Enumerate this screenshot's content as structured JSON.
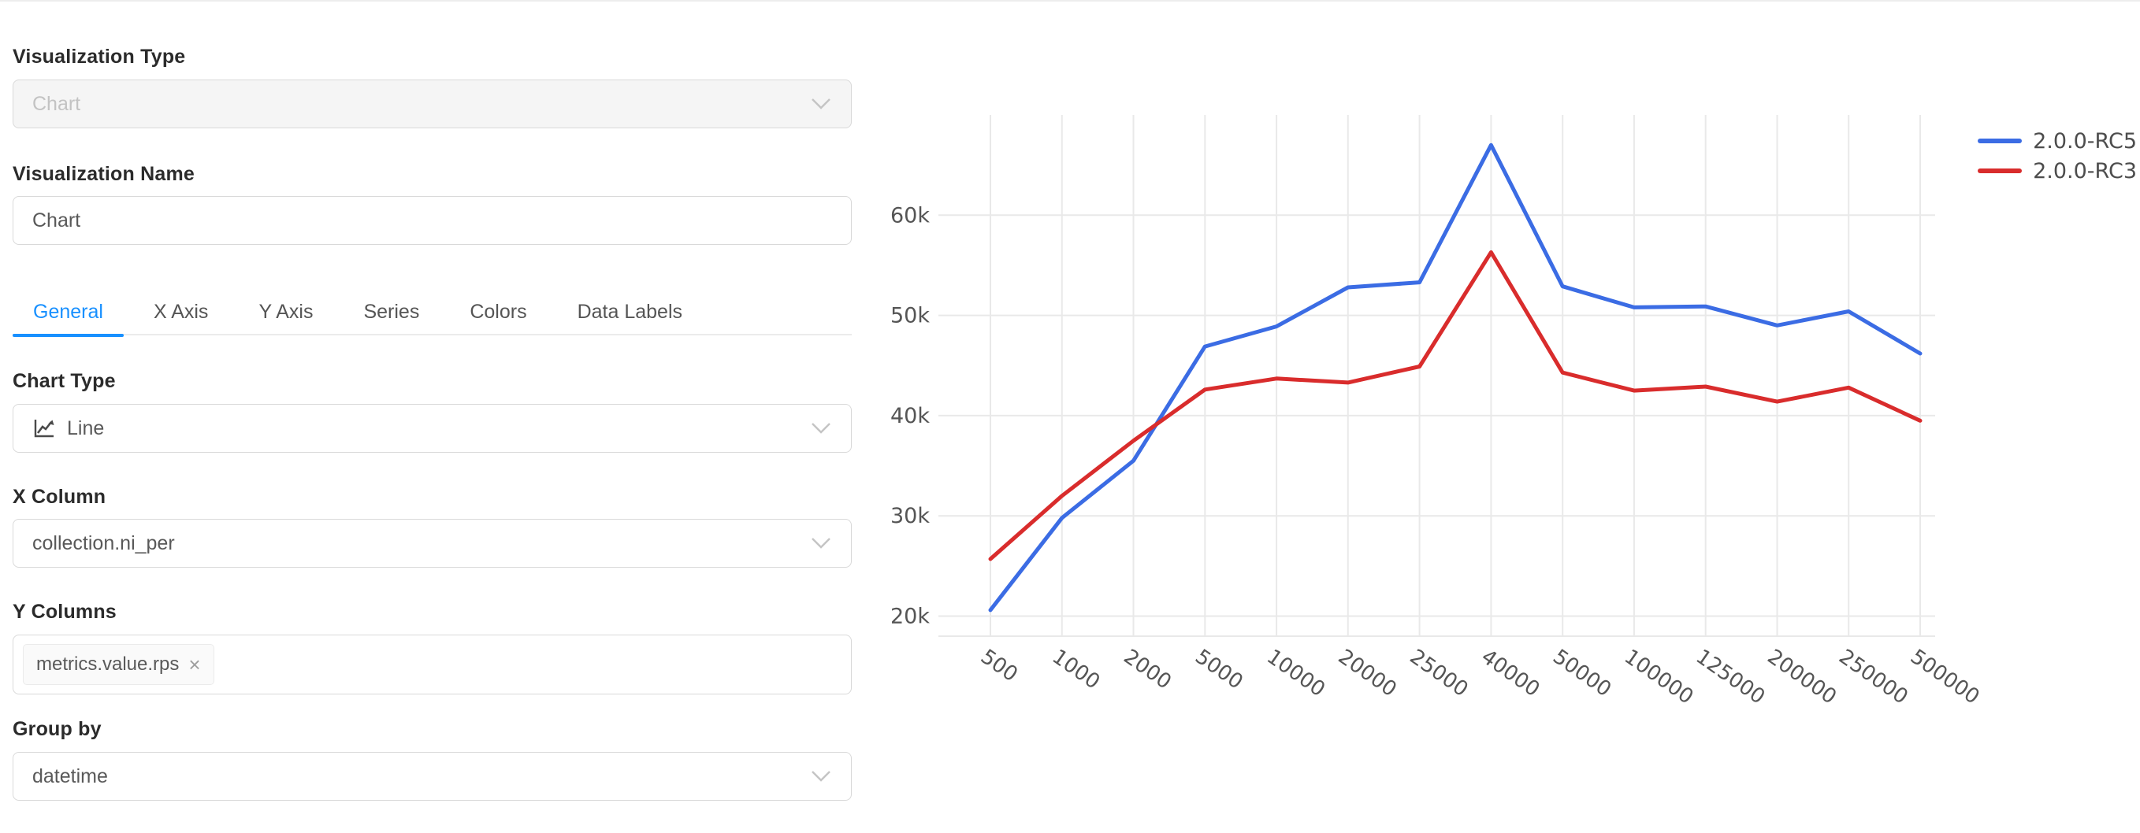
{
  "form": {
    "visualization_type": {
      "label": "Visualization Type",
      "value": "Chart"
    },
    "visualization_name": {
      "label": "Visualization Name",
      "value": "Chart"
    },
    "tabs": [
      {
        "label": "General",
        "active": true
      },
      {
        "label": "X Axis",
        "active": false
      },
      {
        "label": "Y Axis",
        "active": false
      },
      {
        "label": "Series",
        "active": false
      },
      {
        "label": "Colors",
        "active": false
      },
      {
        "label": "Data Labels",
        "active": false
      }
    ],
    "chart_type": {
      "label": "Chart Type",
      "value": "Line",
      "icon": "line-chart-icon"
    },
    "x_column": {
      "label": "X Column",
      "value": "collection.ni_per"
    },
    "y_columns": {
      "label": "Y Columns",
      "tag": "metrics.value.rps",
      "tag_remove": "×"
    },
    "group_by": {
      "label": "Group by",
      "value": "datetime"
    }
  },
  "colors": {
    "accent": "#1890ff",
    "grid": "#e9e9e9",
    "series_blue": "#3b6ce4",
    "series_red": "#d92c2c"
  },
  "chart_data": {
    "type": "line",
    "categories": [
      "500",
      "1000",
      "2000",
      "5000",
      "10000",
      "20000",
      "25000",
      "40000",
      "50000",
      "100000",
      "125000",
      "200000",
      "250000",
      "500000"
    ],
    "series": [
      {
        "name": "2.0.0-RC5",
        "color": "#3b6ce4",
        "values": [
          20600,
          29800,
          35500,
          46900,
          48900,
          52800,
          53300,
          67000,
          52900,
          50800,
          50900,
          49000,
          50400,
          46200
        ]
      },
      {
        "name": "2.0.0-RC3",
        "color": "#d92c2c",
        "values": [
          25700,
          32000,
          37500,
          42600,
          43700,
          43300,
          44900,
          56300,
          44300,
          42500,
          42900,
          41400,
          42800,
          39500
        ]
      }
    ],
    "yticks": [
      "20k",
      "30k",
      "40k",
      "50k",
      "60k"
    ],
    "ytick_values": [
      20000,
      30000,
      40000,
      50000,
      60000
    ],
    "ylim": [
      18000,
      70000
    ],
    "grid": true,
    "legend_position": "top-right",
    "x_label_rotation": 35,
    "title": "",
    "xlabel": "",
    "ylabel": ""
  }
}
